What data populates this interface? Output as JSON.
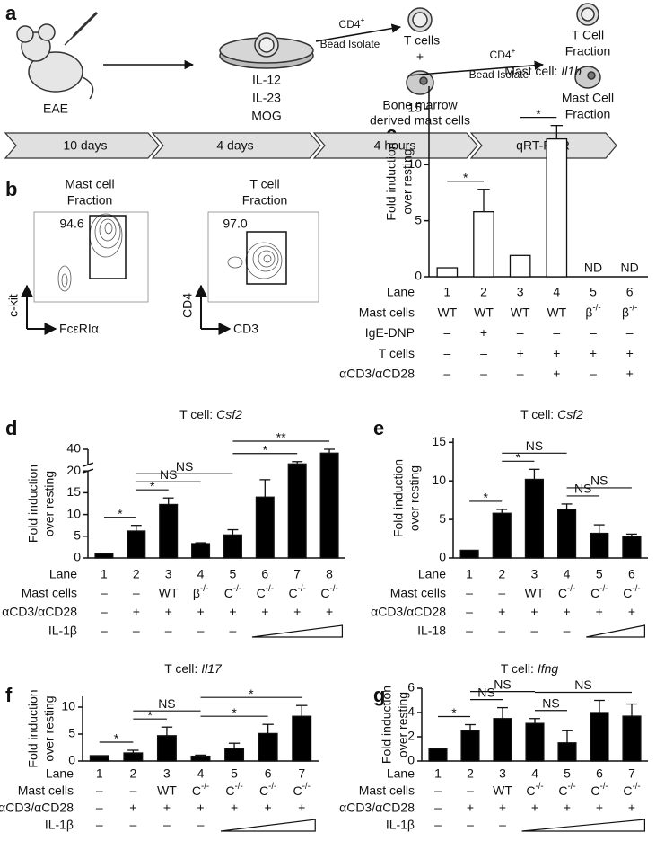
{
  "panel_labels": [
    "a",
    "b",
    "c",
    "d",
    "e",
    "f",
    "g"
  ],
  "panel_a": {
    "mouse": "EAE",
    "culture": [
      "IL-12",
      "IL-23",
      "MOG"
    ],
    "step_1": [
      "CD4+",
      "Bead Isolate"
    ],
    "t_cells": "T cells",
    "plus": "+",
    "mast_cells": [
      "Bone marrow",
      "derived mast cells"
    ],
    "step_2": [
      "CD4+",
      "Bead Isolate"
    ],
    "t_fraction": [
      "T Cell",
      "Fraction"
    ],
    "mast_fraction": [
      "Mast Cell",
      "Fraction"
    ],
    "timeline": [
      "10 days",
      "4 days",
      "4 hours",
      "qRT-PCR"
    ]
  },
  "panel_b": {
    "plots": [
      {
        "title": [
          "Mast cell",
          "Fraction"
        ],
        "gate": "94.6",
        "y_axis": "c-kit",
        "x_axis": "FcεRIα"
      },
      {
        "title": [
          "T cell",
          "Fraction"
        ],
        "gate": "97.0",
        "y_axis": "CD4",
        "x_axis": "CD3"
      }
    ]
  },
  "chart_data": [
    {
      "type": "bar",
      "title": "Mast cell: Il1b",
      "ylabel": [
        "Fold induction",
        "over resting"
      ],
      "lane_label": "Lane",
      "categories": [
        "1",
        "2",
        "3",
        "4",
        "5",
        "6"
      ],
      "values": [
        0.8,
        5.8,
        1.9,
        12.3,
        null,
        null
      ],
      "errors": [
        null,
        2.0,
        null,
        1.2,
        null,
        null
      ],
      "value_labels": [
        null,
        null,
        null,
        null,
        "ND",
        "ND"
      ],
      "color": "#ffffff",
      "ylim": [
        0,
        17
      ],
      "yticks": [
        0,
        5,
        10,
        15
      ],
      "rows": [
        {
          "label": "Mast cells",
          "values": [
            "WT",
            "WT",
            "WT",
            "WT",
            "β-/-",
            "β-/-"
          ]
        },
        {
          "label": "IgE-DNP",
          "values": [
            "–",
            "+",
            "–",
            "–",
            "–",
            "–"
          ]
        },
        {
          "label": "T cells",
          "values": [
            "–",
            "–",
            "+",
            "+",
            "+",
            "+"
          ]
        },
        {
          "label": "αCD3/αCD28",
          "values": [
            "–",
            "–",
            "–",
            "+",
            "–",
            "+"
          ]
        }
      ],
      "comparisons": [
        {
          "lanes": [
            0,
            1
          ],
          "label": "*"
        },
        {
          "lanes": [
            2,
            3
          ],
          "label": "*"
        }
      ]
    },
    {
      "type": "bar",
      "title": "T cell: Csf2",
      "ylabel": [
        "Fold induction",
        "over resting"
      ],
      "lane_label": "Lane",
      "categories": [
        "1",
        "2",
        "3",
        "4",
        "5",
        "6",
        "7",
        "8"
      ],
      "values": [
        1.0,
        6.2,
        12.3,
        3.3,
        5.3,
        14.0,
        21.0,
        35.0
      ],
      "errors": [
        null,
        1.3,
        1.5,
        0.2,
        1.2,
        4.0,
        3.0,
        5.0
      ],
      "color": "#000000",
      "ylim": [
        0,
        40
      ],
      "yticks": [
        0,
        5,
        10,
        15,
        20,
        40
      ],
      "axis_break": 20,
      "rows": [
        {
          "label": "Mast cells",
          "values": [
            "–",
            "–",
            "WT",
            "β-/-",
            "C-/-",
            "C-/-",
            "C-/-",
            "C-/-"
          ]
        },
        {
          "label": "αCD3/αCD28",
          "values": [
            "–",
            "+",
            "+",
            "+",
            "+",
            "+",
            "+",
            "+"
          ]
        },
        {
          "label": "IL-1β",
          "values": [
            "–",
            "–",
            "–",
            "–",
            "–",
            null,
            null,
            null
          ]
        }
      ],
      "ramp": {
        "row": 2,
        "lanes": [
          5,
          7
        ]
      },
      "comparisons": [
        {
          "lanes": [
            0,
            1
          ],
          "label": "*"
        },
        {
          "lanes": [
            1,
            2
          ],
          "label": "*"
        },
        {
          "lanes": [
            1,
            3
          ],
          "label": "NS"
        },
        {
          "lanes": [
            1,
            4
          ],
          "label": "NS"
        },
        {
          "lanes": [
            4,
            6
          ],
          "label": "*"
        },
        {
          "lanes": [
            4,
            7
          ],
          "label": "**"
        }
      ]
    },
    {
      "type": "bar",
      "title": "T cell: Csf2",
      "ylabel": [
        "Fold induction",
        "over resting"
      ],
      "lane_label": "Lane",
      "categories": [
        "1",
        "2",
        "3",
        "4",
        "5",
        "6"
      ],
      "values": [
        1.0,
        5.8,
        10.2,
        6.3,
        3.2,
        2.8
      ],
      "errors": [
        null,
        0.5,
        1.3,
        0.7,
        1.1,
        0.3
      ],
      "color": "#000000",
      "ylim": [
        0,
        15.5
      ],
      "yticks": [
        0,
        5,
        10,
        15
      ],
      "rows": [
        {
          "label": "Mast cells",
          "values": [
            "–",
            "–",
            "WT",
            "C-/-",
            "C-/-",
            "C-/-"
          ]
        },
        {
          "label": "αCD3/αCD28",
          "values": [
            "–",
            "+",
            "+",
            "+",
            "+",
            "+"
          ]
        },
        {
          "label": "IL-18",
          "values": [
            "–",
            "–",
            "–",
            "–",
            null,
            null
          ]
        }
      ],
      "ramp": {
        "row": 2,
        "lanes": [
          4,
          5
        ]
      },
      "comparisons": [
        {
          "lanes": [
            0,
            1
          ],
          "label": "*"
        },
        {
          "lanes": [
            1,
            2
          ],
          "label": "*"
        },
        {
          "lanes": [
            1,
            3
          ],
          "label": "NS"
        },
        {
          "lanes": [
            3,
            4
          ],
          "label": "NS"
        },
        {
          "lanes": [
            3,
            5
          ],
          "label": "NS"
        }
      ]
    },
    {
      "type": "bar",
      "title": "T cell: Il17",
      "ylabel": [
        "Fold induction",
        "over resting"
      ],
      "lane_label": "Lane",
      "categories": [
        "1",
        "2",
        "3",
        "4",
        "5",
        "6",
        "7"
      ],
      "values": [
        1.0,
        1.5,
        4.7,
        0.9,
        2.3,
        5.1,
        8.3
      ],
      "errors": [
        null,
        0.5,
        1.6,
        0.2,
        1.0,
        1.7,
        2.0
      ],
      "color": "#000000",
      "ylim": [
        0,
        12
      ],
      "yticks": [
        0,
        5,
        10
      ],
      "rows": [
        {
          "label": "Mast cells",
          "values": [
            "–",
            "–",
            "WT",
            "C-/-",
            "C-/-",
            "C-/-",
            "C-/-"
          ]
        },
        {
          "label": "αCD3/αCD28",
          "values": [
            "–",
            "+",
            "+",
            "+",
            "+",
            "+",
            "+"
          ]
        },
        {
          "label": "IL-1β",
          "values": [
            "–",
            "–",
            "–",
            "–",
            null,
            null,
            null
          ]
        }
      ],
      "ramp": {
        "row": 2,
        "lanes": [
          4,
          6
        ]
      },
      "comparisons": [
        {
          "lanes": [
            0,
            1
          ],
          "label": "*"
        },
        {
          "lanes": [
            1,
            2
          ],
          "label": "*"
        },
        {
          "lanes": [
            1,
            3
          ],
          "label": "NS"
        },
        {
          "lanes": [
            3,
            5
          ],
          "label": "*"
        },
        {
          "lanes": [
            3,
            6
          ],
          "label": "*"
        }
      ]
    },
    {
      "type": "bar",
      "title": "T cell: Ifng",
      "ylabel": [
        "Fold induction",
        "over resting"
      ],
      "lane_label": "Lane",
      "categories": [
        "1",
        "2",
        "3",
        "4",
        "5",
        "6",
        "7"
      ],
      "values": [
        1.0,
        2.5,
        3.5,
        3.1,
        1.5,
        4.0,
        3.7
      ],
      "errors": [
        null,
        0.5,
        0.9,
        0.4,
        1.0,
        1.0,
        1.0
      ],
      "color": "#000000",
      "ylim": [
        0,
        6
      ],
      "yticks": [
        0,
        2,
        4,
        6
      ],
      "rows": [
        {
          "label": "Mast cells",
          "values": [
            "–",
            "–",
            "WT",
            "C-/-",
            "C-/-",
            "C-/-",
            "C-/-"
          ]
        },
        {
          "label": "αCD3/αCD28",
          "values": [
            "–",
            "+",
            "+",
            "+",
            "+",
            "+",
            "+"
          ]
        },
        {
          "label": "IL-1β",
          "values": [
            "–",
            "–",
            "–",
            null,
            null,
            null,
            null
          ]
        }
      ],
      "ramp": {
        "row": 2,
        "lanes": [
          3,
          6
        ]
      },
      "comparisons": [
        {
          "lanes": [
            0,
            1
          ],
          "label": "*"
        },
        {
          "lanes": [
            1,
            2
          ],
          "label": "NS"
        },
        {
          "lanes": [
            1,
            3
          ],
          "label": "NS"
        },
        {
          "lanes": [
            3,
            4
          ],
          "label": "NS"
        },
        {
          "lanes": [
            3,
            6
          ],
          "label": "NS"
        }
      ]
    }
  ]
}
